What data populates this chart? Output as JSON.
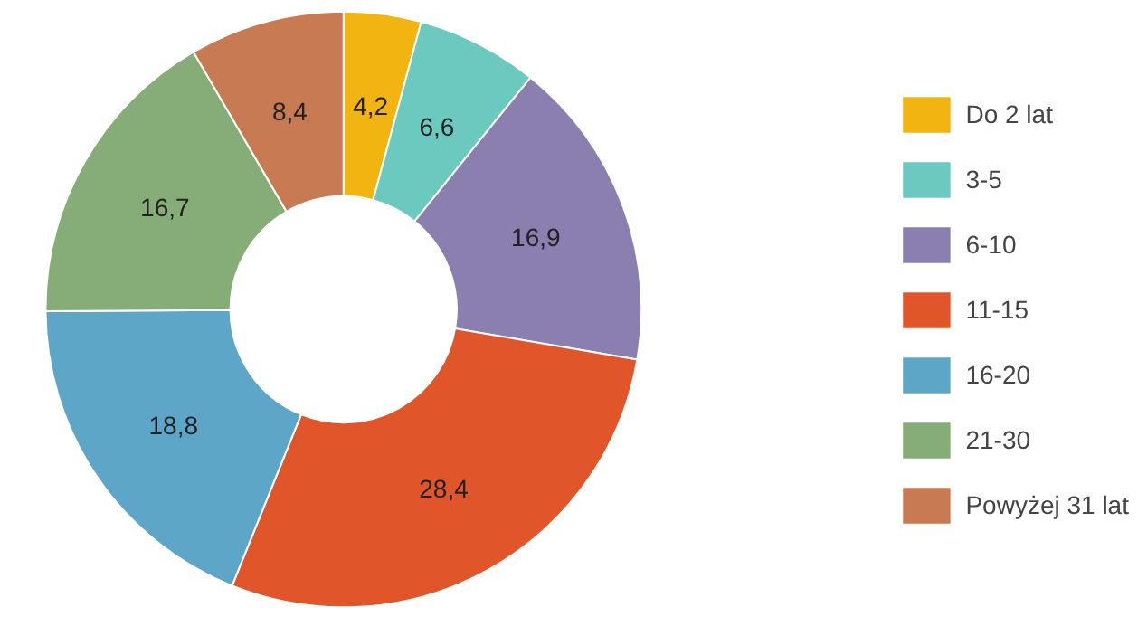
{
  "chart_data": {
    "type": "donut",
    "categories": [
      "Do 2 lat",
      "3-5",
      "6-10",
      "11-15",
      "16-20",
      "21-30",
      "Powyżej 31 lat"
    ],
    "values": [
      4.2,
      6.6,
      16.9,
      28.4,
      18.8,
      16.7,
      8.4
    ],
    "value_labels": [
      "4,2",
      "6,6",
      "16,9",
      "28,4",
      "18,8",
      "16,7",
      "8,4"
    ],
    "colors": [
      "#f2b411",
      "#6cc9c0",
      "#8a7fae",
      "#e0562a",
      "#5ea6c8",
      "#86ac78",
      "#c87a52"
    ],
    "legend": "right"
  }
}
